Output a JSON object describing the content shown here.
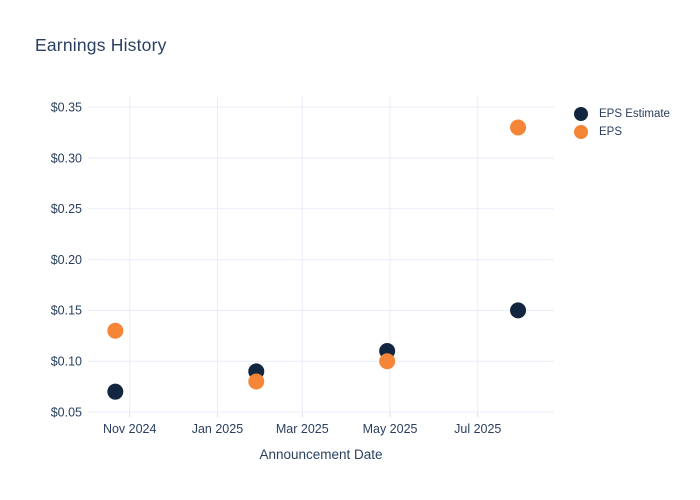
{
  "chart_data": {
    "type": "scatter",
    "title": "Earnings History",
    "xlabel": "Announcement Date",
    "ylabel": "",
    "x": [
      "2024-10-22",
      "2025-01-28",
      "2025-04-29",
      "2025-07-29"
    ],
    "series": [
      {
        "name": "EPS Estimate",
        "color": "#13263f",
        "values": [
          0.07,
          0.09,
          0.11,
          0.15
        ]
      },
      {
        "name": "EPS",
        "color": "#f58638",
        "values": [
          0.13,
          0.08,
          0.1,
          0.33
        ]
      }
    ],
    "x_ticks": [
      {
        "date": "2024-11-01",
        "label": "Nov 2024"
      },
      {
        "date": "2025-01-01",
        "label": "Jan 2025"
      },
      {
        "date": "2025-03-01",
        "label": "Mar 2025"
      },
      {
        "date": "2025-05-01",
        "label": "May 2025"
      },
      {
        "date": "2025-07-01",
        "label": "Jul 2025"
      }
    ],
    "y_ticks": [
      {
        "value": 0.05,
        "label": "$0.05"
      },
      {
        "value": 0.1,
        "label": "$0.10"
      },
      {
        "value": 0.15,
        "label": "$0.15"
      },
      {
        "value": 0.2,
        "label": "$0.20"
      },
      {
        "value": 0.25,
        "label": "$0.25"
      },
      {
        "value": 0.3,
        "label": "$0.30"
      },
      {
        "value": 0.35,
        "label": "$0.35"
      }
    ],
    "xlim": [
      "2024-10-03",
      "2025-08-23"
    ],
    "ylim": [
      0.05,
      0.36
    ],
    "grid": true,
    "legend_position": "right",
    "marker_diameter_px": 16,
    "colors": {
      "text": "#2a3f5f",
      "grid": "#e9edf8",
      "tick": "#d9e0ee",
      "plot_bg": "#ffffff"
    }
  }
}
